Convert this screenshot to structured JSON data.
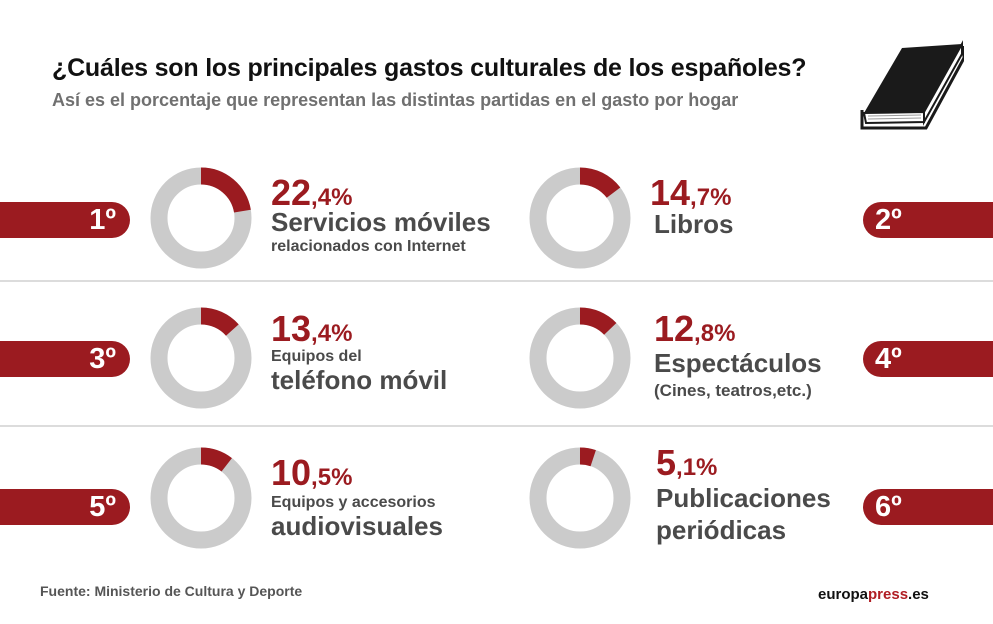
{
  "title": "¿Cuáles son los principales gastos culturales de los españoles?",
  "subtitle": "Así es el porcentaje que representan las distintas partidas en el gasto por hogar",
  "colors": {
    "accent": "#9b1b20",
    "ring": "#cbcbcb",
    "text": "#4a4a4a"
  },
  "items": [
    {
      "rank": "1º",
      "pct_int": "22",
      "pct_dec": ",4%",
      "line1": "Servicios móviles",
      "line2": "relacionados con Internet"
    },
    {
      "rank": "2º",
      "pct_int": "14",
      "pct_dec": ",7%",
      "line1": "Libros"
    },
    {
      "rank": "3º",
      "pct_int": "13",
      "pct_dec": ",4%",
      "line1": "Equipos del",
      "line2": "teléfono móvil"
    },
    {
      "rank": "4º",
      "pct_int": "12",
      "pct_dec": ",8%",
      "line1": "Espectáculos",
      "line2": "(Cines, teatros,etc.)"
    },
    {
      "rank": "5º",
      "pct_int": "10",
      "pct_dec": ",5%",
      "line1": "Equipos y accesorios",
      "line2": "audiovisuales"
    },
    {
      "rank": "6º",
      "pct_int": "5",
      "pct_dec": ",1%",
      "line1": "Publicaciones",
      "line2": "periódicas"
    }
  ],
  "chart_data": {
    "type": "pie",
    "title": "¿Cuáles son los principales gastos culturales de los españoles?",
    "subtitle": "Así es el porcentaje que representan las distintas partidas en el gasto por hogar",
    "unit": "%",
    "categories": [
      "Servicios móviles relacionados con Internet",
      "Libros",
      "Equipos del teléfono móvil",
      "Espectáculos (Cines, teatros,etc.)",
      "Equipos y accesorios audiovisuales",
      "Publicaciones periódicas"
    ],
    "values": [
      22.4,
      14.7,
      13.4,
      12.8,
      10.5,
      5.1
    ]
  },
  "footer": {
    "source": "Fuente: Ministerio de Cultura y Deporte",
    "brand_a": "europa",
    "brand_b": "press",
    "brand_c": ".es"
  }
}
